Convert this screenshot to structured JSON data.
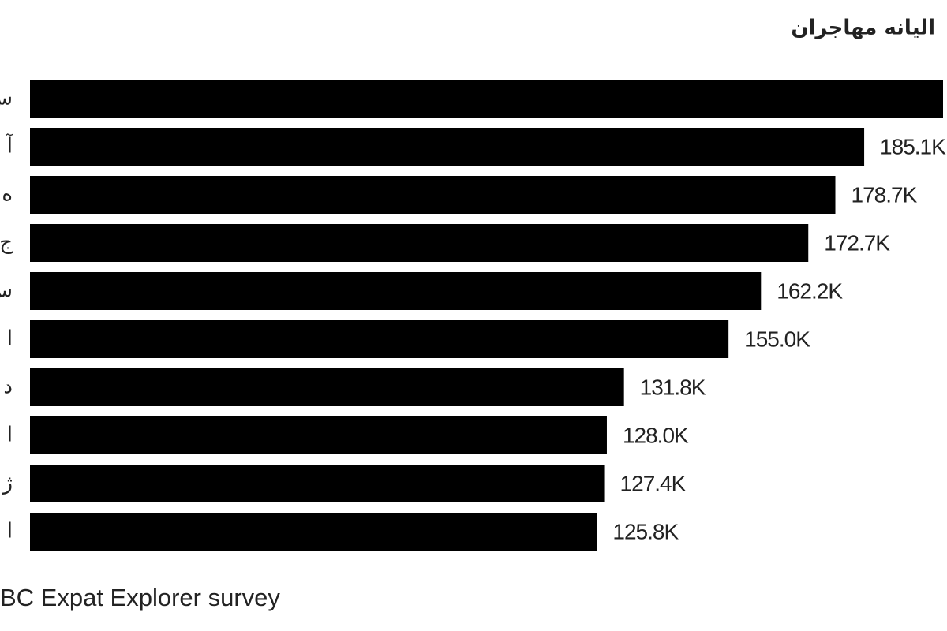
{
  "chart_data": {
    "type": "bar",
    "orientation": "horizontal",
    "title": "الیانه مهاجران",
    "source": "BC Expat Explorer survey",
    "categories": [
      "س",
      "آ",
      "ه",
      "ج",
      "س",
      "ا",
      "د",
      "ا",
      "ژ",
      "ا"
    ],
    "values": [
      202.6,
      185.1,
      178.7,
      172.7,
      162.2,
      155.0,
      131.8,
      128.0,
      127.4,
      125.8
    ],
    "value_labels": [
      null,
      "185.1K",
      "178.7K",
      "172.7K",
      "162.2K",
      "155.0K",
      "131.8K",
      "128.0K",
      "127.4K",
      "125.8K"
    ],
    "color": "#000000"
  }
}
